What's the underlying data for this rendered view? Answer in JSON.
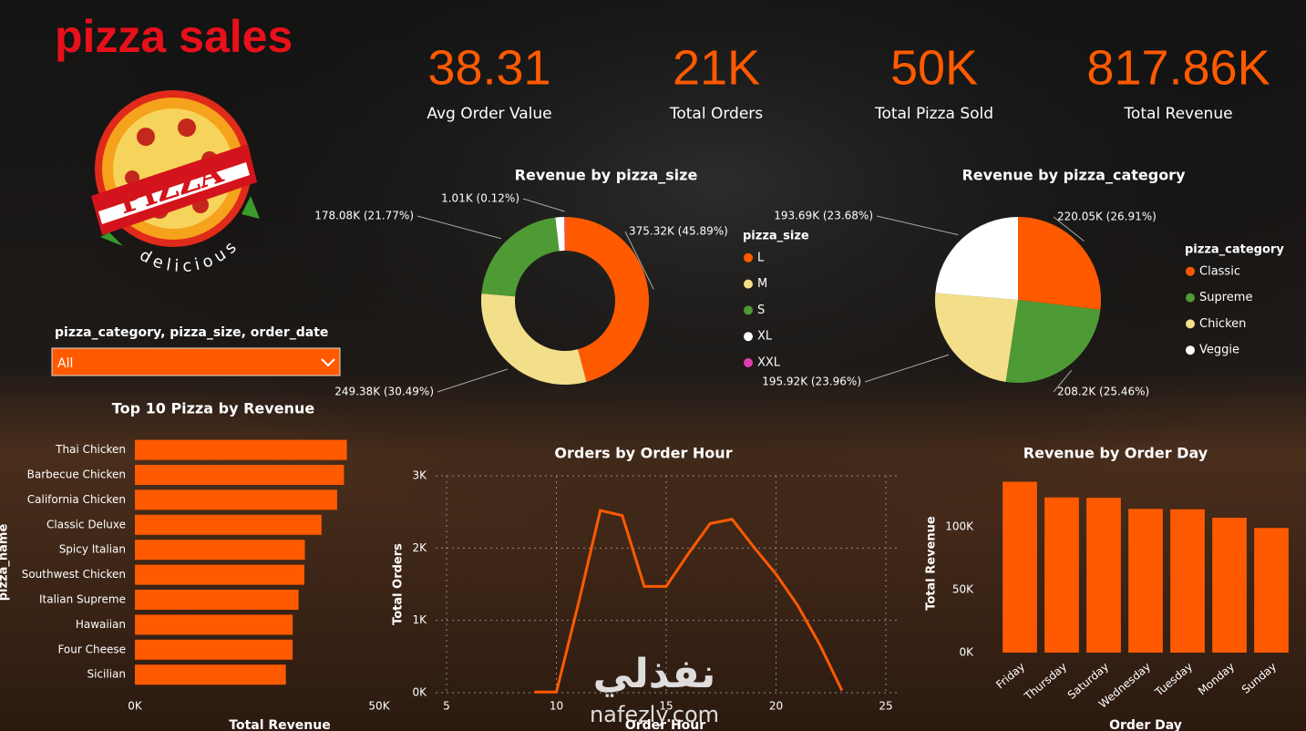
{
  "header": {
    "title": "pizza sales"
  },
  "logo": {
    "title": "PIZZA",
    "tagline": "delicious"
  },
  "kpis": [
    {
      "value": "38.31",
      "label": "Avg Order Value"
    },
    {
      "value": "21K",
      "label": "Total Orders"
    },
    {
      "value": "50K",
      "label": "Total Pizza Sold"
    },
    {
      "value": "817.86K",
      "label": "Total Revenue"
    }
  ],
  "slicer": {
    "label": "pizza_category, pizza_size, order_date",
    "value": "All"
  },
  "watermark": {
    "arabic": "نفذلي",
    "latin": "nafezly.com"
  },
  "chart_data": [
    {
      "type": "donut",
      "title": "Revenue by pizza_size",
      "legend_title": "pizza_size",
      "legend": "right",
      "categories": [
        "L",
        "M",
        "S",
        "XL",
        "XXL"
      ],
      "values": [
        375.32,
        249.38,
        178.08,
        14.08,
        1.01
      ],
      "value_labels": [
        "375.32K (45.89%)",
        "249.38K (30.49%)",
        "178.08K (21.77%)",
        null,
        "1.01K (0.12%)"
      ],
      "colors": [
        "#ff5a00",
        "#f3df8a",
        "#4e9a35",
        "#ffffff",
        "#e23fae"
      ]
    },
    {
      "type": "pie",
      "title": "Revenue by pizza_category",
      "legend_title": "pizza_category",
      "legend": "right",
      "categories": [
        "Classic",
        "Supreme",
        "Chicken",
        "Veggie"
      ],
      "values": [
        220.05,
        208.2,
        195.92,
        193.69
      ],
      "value_labels": [
        "220.05K (26.91%)",
        "208.2K (25.46%)",
        "195.92K (23.96%)",
        "193.69K (23.68%)"
      ],
      "colors": [
        "#ff5a00",
        "#4e9a35",
        "#f3df8a",
        "#ffffff"
      ]
    },
    {
      "type": "bar",
      "orientation": "horizontal",
      "title": "Top 10 Pizza by Revenue",
      "x_label": "Total Revenue",
      "y_label": "pizza_name",
      "color": "#ff5a00",
      "categories": [
        "Thai Chicken",
        "Barbecue Chicken",
        "California Chicken",
        "Classic Deluxe",
        "Spicy Italian",
        "Southwest Chicken",
        "Italian Supreme",
        "Hawaiian",
        "Four Cheese",
        "Sicilian"
      ],
      "values": [
        43400,
        42800,
        41400,
        38200,
        34800,
        34700,
        33500,
        32300,
        32300,
        30900
      ],
      "xlim": [
        0,
        50000
      ],
      "xticks": [
        {
          "value": 0,
          "label": "0K"
        },
        {
          "value": 50000,
          "label": "50K"
        }
      ],
      "grid": false
    },
    {
      "type": "line",
      "title": "Orders by Order Hour",
      "x_label": "Order Hour",
      "y_label": "Total Orders",
      "color": "#ff5a00",
      "x": [
        9,
        10,
        11,
        12,
        13,
        14,
        15,
        16,
        17,
        18,
        19,
        20,
        21,
        22,
        23
      ],
      "values": [
        10,
        10,
        1230,
        2520,
        2450,
        1470,
        1470,
        1920,
        2340,
        2400,
        2010,
        1640,
        1200,
        660,
        30
      ],
      "xlim": [
        5,
        25
      ],
      "xticks": [
        5,
        10,
        15,
        20,
        25
      ],
      "ylim": [
        0,
        3000
      ],
      "yticks": [
        {
          "value": 0,
          "label": "0K"
        },
        {
          "value": 1000,
          "label": "1K"
        },
        {
          "value": 2000,
          "label": "2K"
        },
        {
          "value": 3000,
          "label": "3K"
        }
      ],
      "grid": true
    },
    {
      "type": "bar",
      "orientation": "vertical",
      "title": "Revenue by Order Day",
      "x_label": "Order Day",
      "y_label": "Total Revenue",
      "color": "#ff5a00",
      "categories": [
        "Friday",
        "Thursday",
        "Saturday",
        "Wednesday",
        "Tuesday",
        "Monday",
        "Sunday"
      ],
      "values": [
        136000,
        123500,
        123200,
        114400,
        114100,
        107300,
        99200
      ],
      "ylim": [
        0,
        140000
      ],
      "yticks": [
        {
          "value": 0,
          "label": "0K"
        },
        {
          "value": 50000,
          "label": "50K"
        },
        {
          "value": 100000,
          "label": "100K"
        }
      ],
      "grid": false
    }
  ]
}
